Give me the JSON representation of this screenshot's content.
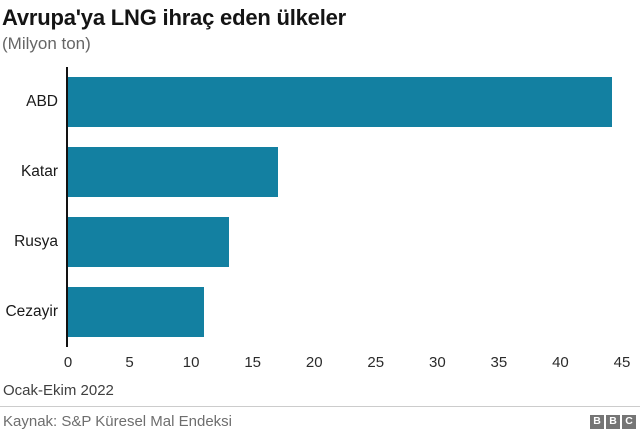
{
  "chart_data": {
    "type": "bar",
    "orientation": "horizontal",
    "title": "Avrupa'ya LNG ihraç eden ülkeler",
    "subtitle": "(Milyon ton)",
    "categories": [
      "ABD",
      "Katar",
      "Rusya",
      "Cezayir"
    ],
    "values": [
      44,
      17,
      13,
      11
    ],
    "xlabel": "",
    "ylabel": "",
    "xlim": [
      0,
      45
    ],
    "xticks": [
      0,
      5,
      10,
      15,
      20,
      25,
      30,
      35,
      40,
      45
    ],
    "grid": false,
    "legend": false,
    "bar_color": "#1380A1",
    "axis_color": "#121212"
  },
  "footer": {
    "note": "Ocak-Ekim 2022",
    "source": "Kaynak: S&P Küresel Mal Endeksi",
    "logo_letters": [
      "B",
      "B",
      "C"
    ]
  }
}
